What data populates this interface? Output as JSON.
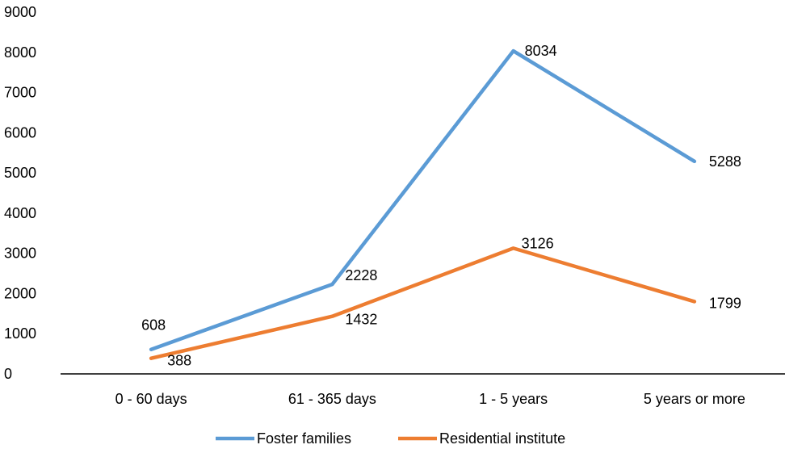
{
  "chart_data": {
    "type": "line",
    "categories": [
      "0 - 60 days",
      "61 - 365 days",
      "1 - 5 years",
      "5 years or more"
    ],
    "series": [
      {
        "name": "Foster families",
        "values": [
          608,
          2228,
          8034,
          5288
        ],
        "color": "#5b9bd5"
      },
      {
        "name": "Residential institute",
        "values": [
          388,
          1432,
          3126,
          1799
        ],
        "color": "#ed7d31"
      }
    ],
    "ylim": [
      0,
      9000
    ],
    "yticks": [
      0,
      1000,
      2000,
      3000,
      4000,
      5000,
      6000,
      7000,
      8000,
      9000
    ],
    "grid": false,
    "legend_position": "bottom",
    "data_labels": true
  }
}
